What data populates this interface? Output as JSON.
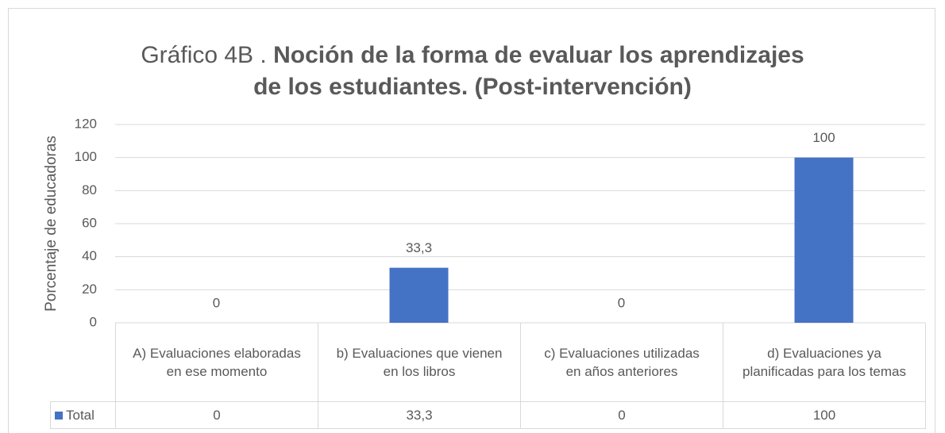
{
  "chart_data": {
    "type": "bar",
    "title": {
      "prefix": "Gráfico 4B .",
      "main": "Noción de la forma de evaluar los aprendizajes de los estudiantes. (Post-intervención)"
    },
    "y_label": "Porcentaje  de educadoras",
    "categories": [
      "A) Evaluaciones elaboradas en ese momento",
      "b) Evaluaciones que vienen en los libros",
      "c) Evaluaciones utilizadas en años anteriores",
      "d) Evaluaciones ya planificadas para los temas"
    ],
    "series": [
      {
        "name": "Total",
        "color": "#4472c4",
        "values": [
          0,
          33.3,
          0,
          100
        ],
        "value_labels": [
          "0",
          "33,3",
          "0",
          "100"
        ]
      }
    ],
    "ylim": [
      0,
      120
    ],
    "yticks": [
      0,
      20,
      40,
      60,
      80,
      100,
      120
    ],
    "grid": true
  }
}
